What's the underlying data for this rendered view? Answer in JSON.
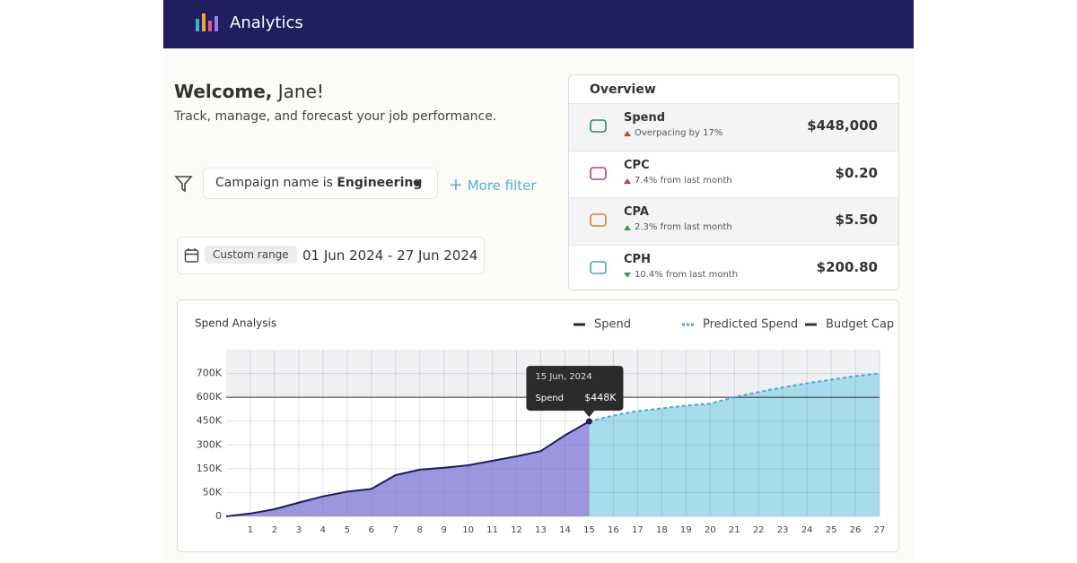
{
  "header": {
    "title": "Analytics"
  },
  "welcome": {
    "greeting": "Welcome,",
    "name": "Jane!",
    "subtitle": "Track, manage, and forecast your job performance."
  },
  "filter": {
    "prefix": "Campaign name is",
    "value": "Engineering",
    "more": "More filter"
  },
  "date": {
    "chip": "Custom range",
    "range": "01 Jun 2024 - 27 Jun 2024"
  },
  "overview": {
    "title": "Overview",
    "items": [
      {
        "label": "Spend",
        "note": "Overpacing by 17%",
        "value": "$448,000",
        "trend": "up",
        "trend_color": "#d9363e",
        "icon_color": "#2f8a57"
      },
      {
        "label": "CPC",
        "note": "7.4% from last month",
        "value": "$0.20",
        "trend": "up",
        "trend_color": "#d9363e",
        "icon_color": "#b0407e"
      },
      {
        "label": "CPA",
        "note": "2.3% from last month",
        "value": "$5.50",
        "trend": "up",
        "trend_color": "#2f9e55",
        "icon_color": "#d9822b"
      },
      {
        "label": "CPH",
        "note": "10.4% from last month",
        "value": "$200.80",
        "trend": "down",
        "trend_color": "#2f9e55",
        "icon_color": "#3aa6c4"
      }
    ]
  },
  "chart_data": {
    "type": "area",
    "title": "Spend Analysis",
    "xlim": [
      0,
      27
    ],
    "xticks": [
      1,
      2,
      3,
      4,
      5,
      6,
      7,
      8,
      9,
      10,
      11,
      12,
      13,
      14,
      15,
      16,
      17,
      18,
      19,
      20,
      21,
      22,
      23,
      24,
      25,
      26,
      27
    ],
    "ylim": [
      0,
      800000
    ],
    "yticks": [
      0,
      {
        "value": 50000,
        "label": "50K"
      },
      {
        "value": 150000,
        "label": "150K"
      },
      {
        "value": 300000,
        "label": "300K"
      },
      {
        "value": 450000,
        "label": "450K"
      },
      {
        "value": 600000,
        "label": "600K"
      },
      {
        "value": 700000,
        "label": "700K"
      }
    ],
    "grid": true,
    "series": [
      {
        "name": "Spend",
        "color": "#1f1d5a",
        "fill": "#9b96de",
        "dashed": false,
        "x": [
          0,
          1,
          2,
          3,
          4,
          5,
          6,
          7,
          8,
          9,
          10,
          11,
          12,
          13,
          14,
          15
        ],
        "values": [
          0,
          6000,
          15000,
          29000,
          42000,
          54000,
          65000,
          123000,
          146000,
          156000,
          172000,
          200000,
          228000,
          261000,
          361000,
          448000
        ],
        "value_labels": [
          null,
          null,
          null,
          null,
          null,
          null,
          null,
          null,
          null,
          null,
          null,
          null,
          null,
          null,
          null,
          "$448K"
        ]
      },
      {
        "name": "Predicted Spend",
        "color": "#4aa7c9",
        "fill": "#a7dcec",
        "dashed": true,
        "x": [
          15,
          16,
          17,
          18,
          19,
          20,
          21,
          22,
          23,
          24,
          25,
          26,
          27
        ],
        "values": [
          448000,
          485000,
          513000,
          530000,
          548000,
          560000,
          600000,
          622000,
          641000,
          659000,
          674000,
          689000,
          700000
        ]
      }
    ],
    "budget_cap": {
      "name": "Budget Cap",
      "value": 600000,
      "color": "#333333"
    },
    "tooltip_date": "15 Jun, 2024"
  }
}
